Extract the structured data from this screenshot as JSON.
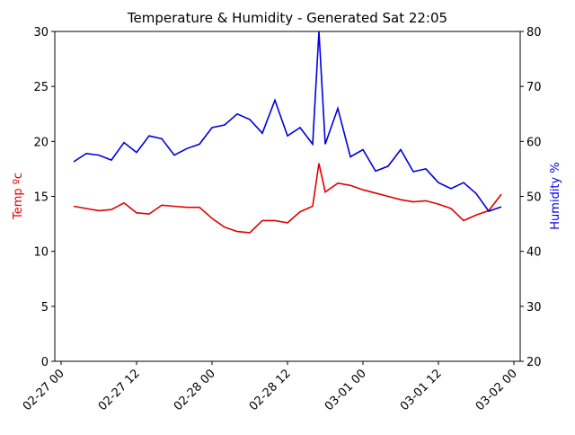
{
  "chart_data": {
    "type": "line",
    "title": "Temperature & Humidity - Generated Sat 22:05",
    "ylabel": "Temp ºc",
    "y2label": "Humidity %",
    "ylabel_color": "#e00000",
    "y2label_color": "#0000dd",
    "x": [
      "02-27 02",
      "02-27 04",
      "02-27 06",
      "02-27 08",
      "02-27 10",
      "02-27 12",
      "02-27 14",
      "02-27 16",
      "02-27 18",
      "02-27 20",
      "02-27 22",
      "02-28 00",
      "02-28 02",
      "02-28 04",
      "02-28 06",
      "02-28 08",
      "02-28 10",
      "02-28 12",
      "02-28 14",
      "02-28 16",
      "02-28 17",
      "02-28 18",
      "02-28 20",
      "02-28 22",
      "03-01 00",
      "03-01 02",
      "03-01 04",
      "03-01 06",
      "03-01 08",
      "03-01 10",
      "03-01 12",
      "03-01 14",
      "03-01 16",
      "03-01 18",
      "03-01 20",
      "03-01 22"
    ],
    "series": [
      {
        "name": "Temp",
        "color": "#e00000",
        "values": [
          14.1,
          13.9,
          13.7,
          13.8,
          14.4,
          13.5,
          13.4,
          14.2,
          14.1,
          14.0,
          14.0,
          13.0,
          12.2,
          11.8,
          11.7,
          12.8,
          12.8,
          12.6,
          13.6,
          14.1,
          18.0,
          15.4,
          16.2,
          16.0,
          15.6,
          15.3,
          15.0,
          14.7,
          14.5,
          14.6,
          14.3,
          13.9,
          12.8,
          13.3,
          13.7,
          15.2
        ]
      },
      {
        "name": "Humidity",
        "color": "#0000dd",
        "axis": "y2",
        "values": [
          56.3,
          57.8,
          57.5,
          56.6,
          59.8,
          58.0,
          61.0,
          60.5,
          57.5,
          58.7,
          59.5,
          62.5,
          63.0,
          65.0,
          64.0,
          61.5,
          67.5,
          61.0,
          62.5,
          59.5,
          80,
          59.5,
          66.0,
          57.2,
          58.5,
          54.6,
          55.5,
          58.5,
          54.5,
          55.0,
          52.5,
          51.4,
          52.5,
          50.5,
          47.3,
          48.1
        ]
      }
    ],
    "xlim": [
      "02-26 23",
      "03-02 01"
    ],
    "xticks": [
      "02-27 00",
      "02-27 12",
      "02-28 00",
      "02-28 12",
      "03-01 00",
      "03-01 12",
      "03-02 00"
    ],
    "ylim": [
      0,
      30
    ],
    "yticks": [
      0,
      5,
      10,
      15,
      20,
      25,
      30
    ],
    "y2lim": [
      20,
      80
    ],
    "y2ticks": [
      20,
      30,
      40,
      50,
      60,
      70,
      80
    ]
  }
}
